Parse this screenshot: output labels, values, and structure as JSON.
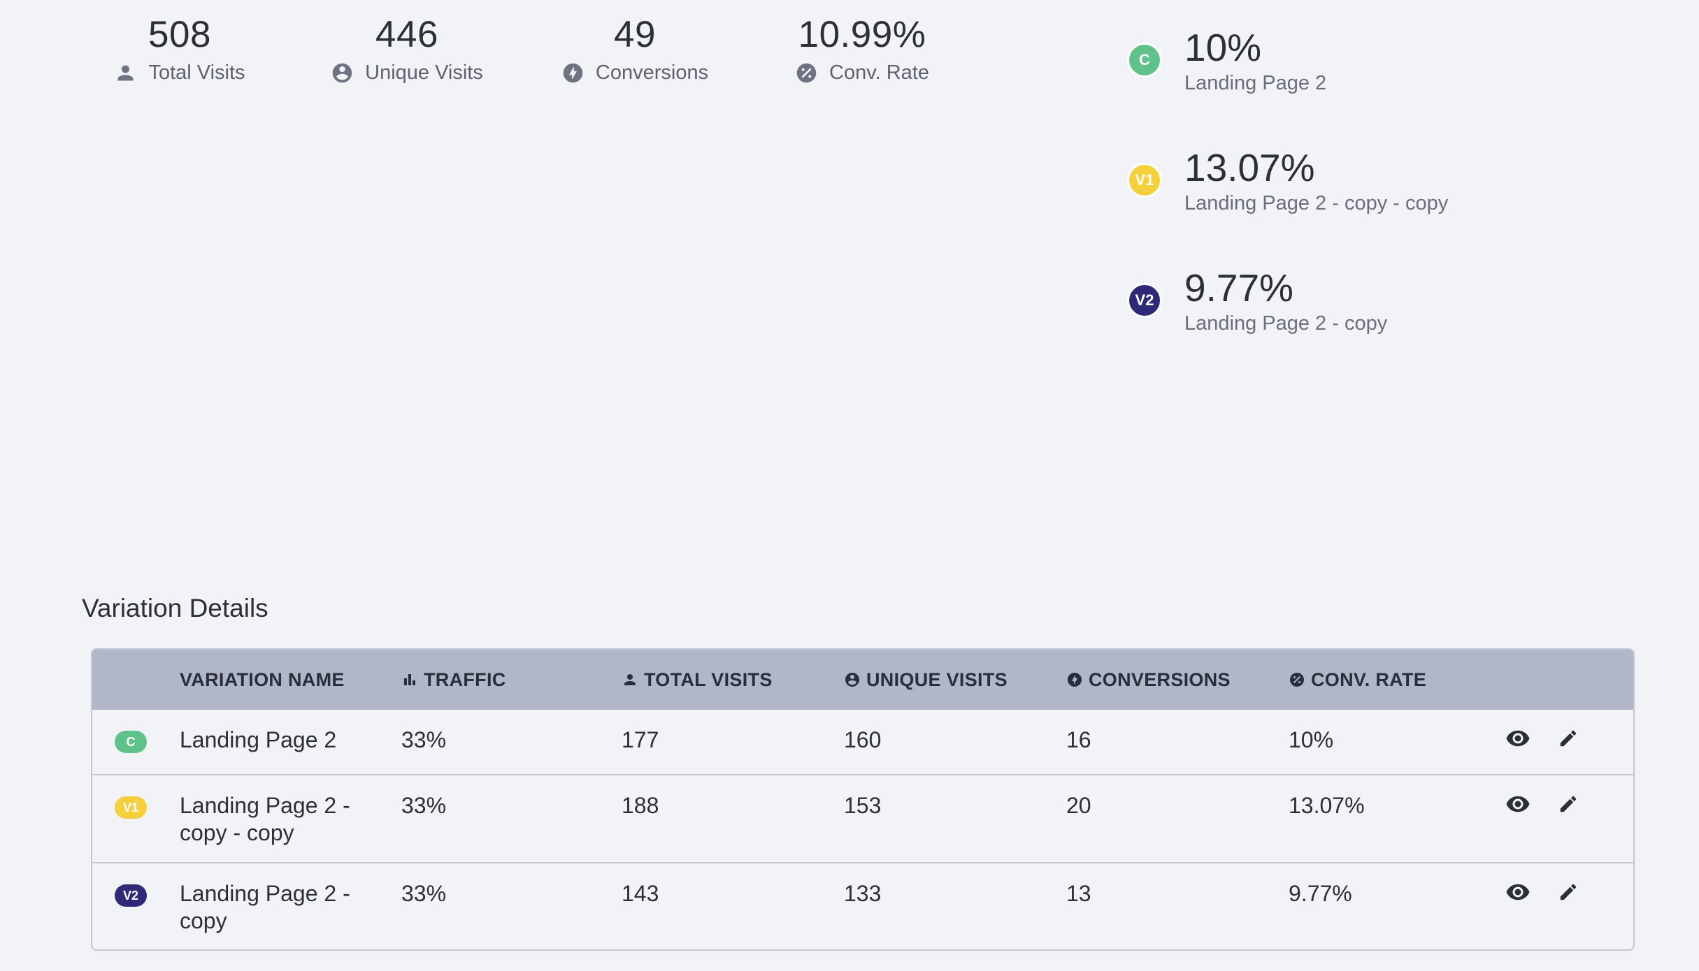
{
  "stats": {
    "total_visits": {
      "value": "508",
      "label": "Total Visits",
      "icon": "person-icon"
    },
    "unique_visits": {
      "value": "446",
      "label": "Unique Visits",
      "icon": "account-circle-icon"
    },
    "conversions": {
      "value": "49",
      "label": "Conversions",
      "icon": "bolt-icon"
    },
    "conv_rate": {
      "value": "10.99%",
      "label": "Conv. Rate",
      "icon": "percent-icon"
    }
  },
  "variation_summary": [
    {
      "badge": "C",
      "rate": "10%",
      "name": "Landing Page 2",
      "color": "#5fc28a"
    },
    {
      "badge": "V1",
      "rate": "13.07%",
      "name": "Landing Page 2 - copy - copy",
      "color": "#f5cf3c"
    },
    {
      "badge": "V2",
      "rate": "9.77%",
      "name": "Landing Page 2 - copy",
      "color": "#2e2a78"
    }
  ],
  "details": {
    "title": "Variation Details",
    "columns": {
      "name": "VARIATION NAME",
      "traffic": "TRAFFIC",
      "total_visits": "TOTAL VISITS",
      "unique_visits": "UNIQUE VISITS",
      "conversions": "CONVERSIONS",
      "conv_rate": "CONV. RATE"
    },
    "rows": [
      {
        "badge": "C",
        "name": "Landing Page 2",
        "traffic": "33%",
        "total_visits": "177",
        "unique_visits": "160",
        "conversions": "16",
        "conv_rate": "10%"
      },
      {
        "badge": "V1",
        "name_line1": "Landing Page 2 -",
        "name_line2": "copy - copy",
        "traffic": "33%",
        "total_visits": "188",
        "unique_visits": "153",
        "conversions": "20",
        "conv_rate": "13.07%"
      },
      {
        "badge": "V2",
        "name_line1": "Landing Page 2 -",
        "name_line2": "copy",
        "traffic": "33%",
        "total_visits": "143",
        "unique_visits": "133",
        "conversions": "13",
        "conv_rate": "9.77%"
      }
    ]
  },
  "colors": {
    "background": "#f2f3f7",
    "table_header": "#b1b7c9",
    "control": "#5fc28a",
    "variation1": "#f5cf3c",
    "variation2": "#2e2a78"
  }
}
